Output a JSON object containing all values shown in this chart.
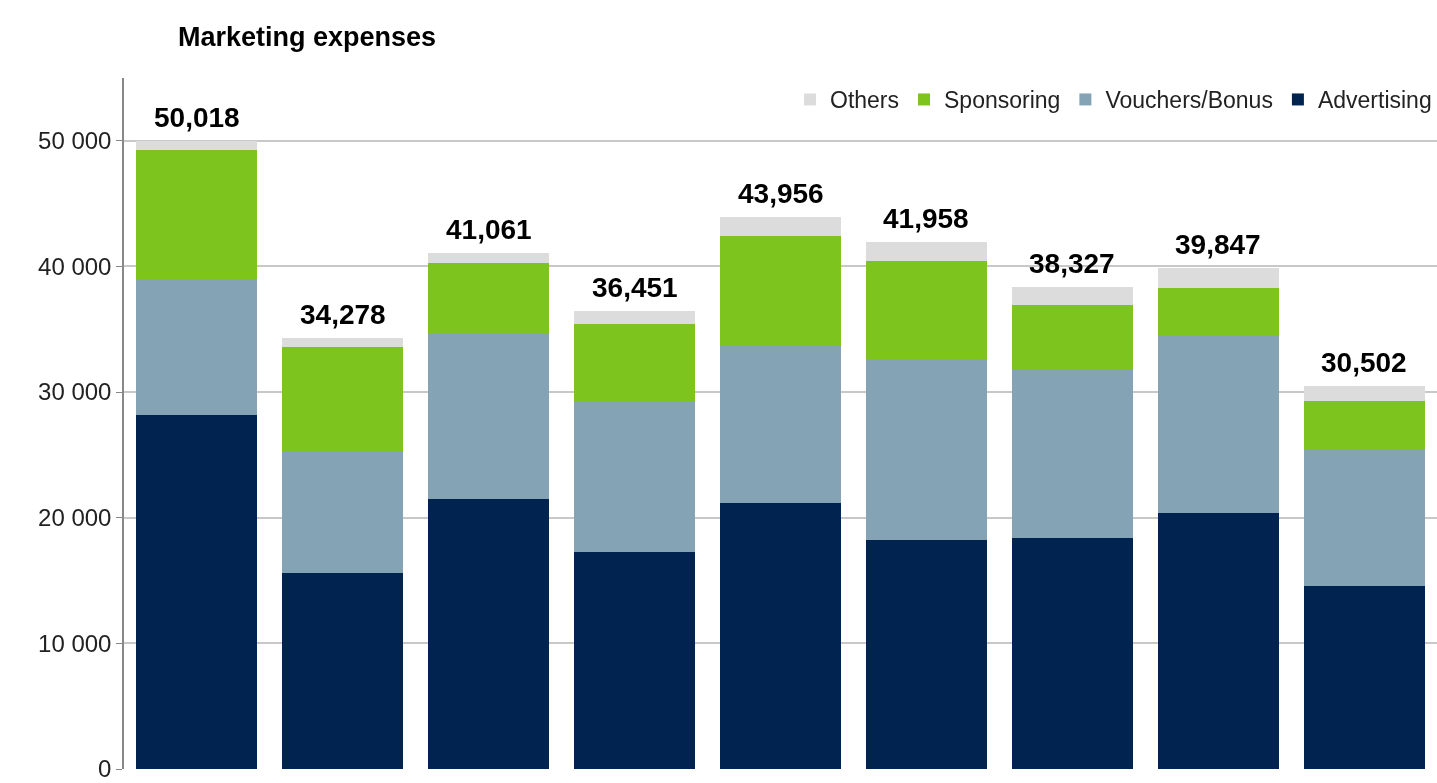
{
  "chart_data": {
    "type": "bar",
    "title": "Marketing expenses",
    "stacked": true,
    "categories": [
      null,
      null,
      null,
      null,
      null,
      null,
      null,
      null,
      null
    ],
    "series": [
      {
        "name": "Advertising",
        "color": "#00234f",
        "values": [
          28200,
          15600,
          21500,
          17300,
          21200,
          18200,
          18400,
          20400,
          14600
        ]
      },
      {
        "name": "Vouchers/Bonus",
        "color": "#84a3b5",
        "values": [
          10800,
          9600,
          13200,
          11900,
          12500,
          14400,
          13400,
          14100,
          10900
        ]
      },
      {
        "name": "Sponsoring",
        "color": "#7ec41f",
        "values": [
          10300,
          8400,
          5600,
          6200,
          8700,
          7800,
          5100,
          3800,
          3800
        ]
      },
      {
        "name": "Others",
        "color": "#dcdcdc",
        "values": [
          718,
          678,
          761,
          1051,
          1556,
          1558,
          1427,
          1547,
          1202
        ]
      }
    ],
    "totals": [
      "50,018",
      "34,278",
      "41,061",
      "36,451",
      "43,956",
      "41,958",
      "38,327",
      "39,847",
      "30,502"
    ],
    "ylim": [
      0,
      55000
    ],
    "yticks": [
      {
        "value": 0,
        "label": "0"
      },
      {
        "value": 10000,
        "label": "10 000"
      },
      {
        "value": 20000,
        "label": "20 000"
      },
      {
        "value": 30000,
        "label": "30 000"
      },
      {
        "value": 40000,
        "label": "40 000"
      },
      {
        "value": 50000,
        "label": "50 000"
      }
    ],
    "grid": "y",
    "legend": "top right"
  }
}
